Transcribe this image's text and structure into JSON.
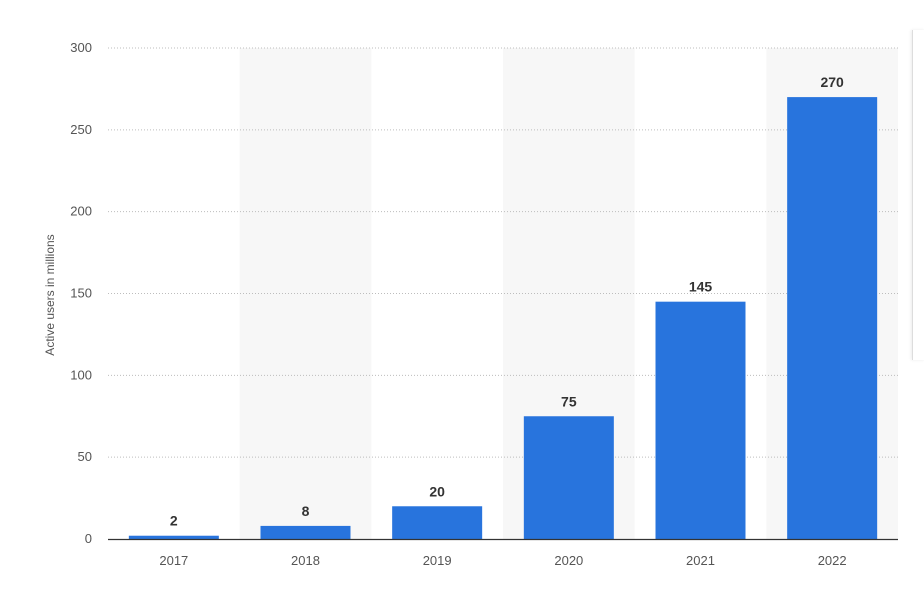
{
  "chart_data": {
    "type": "bar",
    "categories": [
      "2017",
      "2018",
      "2019",
      "2020",
      "2021",
      "2022"
    ],
    "values": [
      2,
      8,
      20,
      75,
      145,
      270
    ],
    "title": "",
    "xlabel": "",
    "ylabel": "Active users in millions",
    "ylim": [
      0,
      300
    ],
    "yticks": [
      "0",
      "50",
      "100",
      "150",
      "200",
      "250",
      "300"
    ],
    "grid": true,
    "grid_style": "dotted",
    "alternate_band_color": "#f7f7f7",
    "bar_color": "#2874dd",
    "data_labels": [
      "2",
      "8",
      "20",
      "75",
      "145",
      "270"
    ]
  }
}
